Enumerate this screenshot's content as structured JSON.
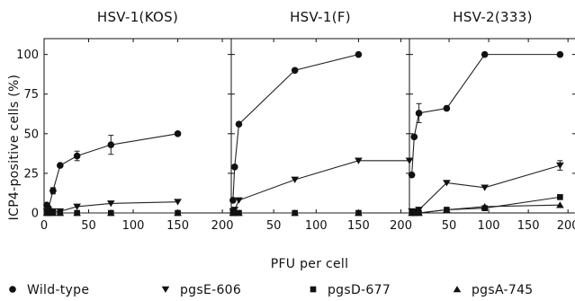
{
  "chart_data": {
    "type": "line",
    "ylabel": "ICP4-positive cells (%)",
    "xlabel": "PFU per cell",
    "ylim": [
      0,
      110
    ],
    "yticks": [
      0,
      25,
      50,
      75,
      100
    ],
    "legend": [
      {
        "label": "Wild-type",
        "marker": "circle"
      },
      {
        "label": "pgsE-606",
        "marker": "triangle-down"
      },
      {
        "label": "pgsD-677",
        "marker": "square"
      },
      {
        "label": "pgsA-745",
        "marker": "triangle-up"
      }
    ],
    "legend_position": "bottom",
    "panels": [
      {
        "title": "HSV-1(KOS)",
        "xlim": [
          0,
          210
        ],
        "xticks": [
          0,
          50,
          100,
          150,
          200
        ],
        "series": [
          {
            "name": "Wild-type",
            "marker": "circle",
            "points": [
              [
                3,
                5
              ],
              [
                5,
                3
              ],
              [
                10,
                14
              ],
              [
                18,
                30
              ],
              [
                37,
                36
              ],
              [
                75,
                43
              ],
              [
                150,
                50
              ]
            ],
            "errors": [
              [
                10,
                2
              ],
              [
                37,
                3
              ],
              [
                75,
                6
              ]
            ]
          },
          {
            "name": "pgsE-606",
            "marker": "triangle-down",
            "points": [
              [
                3,
                1
              ],
              [
                5,
                1
              ],
              [
                10,
                1
              ],
              [
                18,
                1
              ],
              [
                37,
                4
              ],
              [
                75,
                6
              ],
              [
                150,
                7
              ]
            ],
            "errors": []
          },
          {
            "name": "pgsD-677",
            "marker": "square",
            "points": [
              [
                3,
                0
              ],
              [
                5,
                0
              ],
              [
                10,
                0
              ],
              [
                18,
                0
              ],
              [
                37,
                0
              ],
              [
                75,
                0
              ],
              [
                150,
                0
              ]
            ],
            "errors": []
          },
          {
            "name": "pgsA-745",
            "marker": "triangle-up",
            "points": [
              [
                3,
                0
              ],
              [
                5,
                0
              ],
              [
                10,
                0
              ],
              [
                18,
                0
              ],
              [
                37,
                0
              ],
              [
                75,
                0
              ],
              [
                150,
                0
              ]
            ],
            "errors": []
          }
        ]
      },
      {
        "title": "HSV-1(F)",
        "xlim": [
          0,
          210
        ],
        "xticks": [
          50,
          100,
          150,
          200
        ],
        "series": [
          {
            "name": "Wild-type",
            "marker": "circle",
            "points": [
              [
                2,
                8
              ],
              [
                4,
                29
              ],
              [
                9,
                56
              ],
              [
                75,
                90
              ],
              [
                150,
                100
              ]
            ],
            "errors": []
          },
          {
            "name": "pgsE-606",
            "marker": "triangle-down",
            "points": [
              [
                2,
                1
              ],
              [
                4,
                2
              ],
              [
                9,
                8
              ],
              [
                75,
                21
              ],
              [
                150,
                33
              ],
              [
                210,
                33
              ]
            ],
            "errors": []
          },
          {
            "name": "pgsD-677",
            "marker": "square",
            "points": [
              [
                2,
                0
              ],
              [
                4,
                0
              ],
              [
                9,
                0
              ],
              [
                75,
                0
              ],
              [
                150,
                0
              ]
            ],
            "errors": []
          },
          {
            "name": "pgsA-745",
            "marker": "triangle-up",
            "points": [
              [
                2,
                0
              ],
              [
                4,
                0
              ],
              [
                9,
                0
              ],
              [
                75,
                0
              ],
              [
                150,
                0
              ]
            ],
            "errors": []
          }
        ]
      },
      {
        "title": "HSV-2(333)",
        "xlim": [
          0,
          210
        ],
        "xticks": [
          50,
          100,
          150,
          200
        ],
        "series": [
          {
            "name": "Wild-type",
            "marker": "circle",
            "points": [
              [
                3,
                24
              ],
              [
                6,
                48
              ],
              [
                12,
                63
              ],
              [
                47,
                66
              ],
              [
                95,
                100
              ],
              [
                190,
                100
              ]
            ],
            "errors": [
              [
                12,
                6
              ]
            ]
          },
          {
            "name": "pgsE-606",
            "marker": "triangle-down",
            "points": [
              [
                3,
                1
              ],
              [
                6,
                1
              ],
              [
                12,
                2
              ],
              [
                47,
                19
              ],
              [
                95,
                16
              ],
              [
                190,
                30
              ]
            ],
            "errors": [
              [
                190,
                3
              ]
            ]
          },
          {
            "name": "pgsD-677",
            "marker": "square",
            "points": [
              [
                3,
                0
              ],
              [
                6,
                0
              ],
              [
                12,
                0
              ],
              [
                47,
                2
              ],
              [
                95,
                3
              ],
              [
                190,
                10
              ]
            ],
            "errors": []
          },
          {
            "name": "pgsA-745",
            "marker": "triangle-up",
            "points": [
              [
                3,
                0
              ],
              [
                6,
                0
              ],
              [
                12,
                0
              ],
              [
                47,
                2
              ],
              [
                95,
                4
              ],
              [
                190,
                5
              ]
            ],
            "errors": []
          }
        ]
      }
    ]
  }
}
